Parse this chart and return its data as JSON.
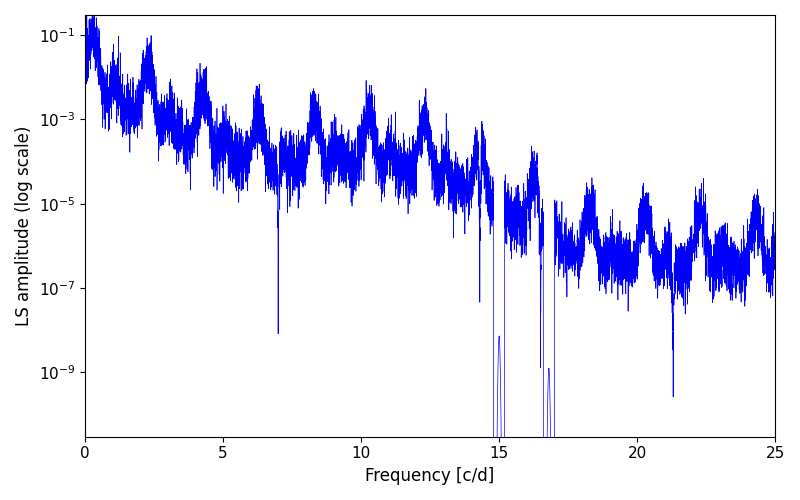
{
  "title": "",
  "xlabel": "Frequency [c/d]",
  "ylabel": "LS amplitude (log scale)",
  "color": "#0000ff",
  "linewidth": 0.5,
  "xlim": [
    0,
    25
  ],
  "ylim": [
    3e-11,
    0.3
  ],
  "background_color": "#ffffff",
  "figsize": [
    8.0,
    5.0
  ],
  "dpi": 100,
  "seed": 12345,
  "n_points": 8000,
  "freq_max": 25.0
}
